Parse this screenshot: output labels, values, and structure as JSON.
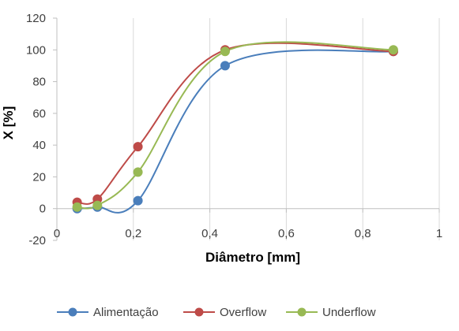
{
  "chart_data": {
    "type": "line",
    "smooth": true,
    "xlabel": "Diâmetro [mm]",
    "ylabel": "X [%]",
    "xlim": [
      0,
      1
    ],
    "ylim": [
      -20,
      120
    ],
    "x_ticks": [
      "0",
      "0,2",
      "0,4",
      "0,6",
      "0,8",
      "1"
    ],
    "x_tick_values": [
      0,
      0.2,
      0.4,
      0.6,
      0.8,
      1
    ],
    "y_ticks": [
      "-20",
      "0",
      "20",
      "40",
      "60",
      "80",
      "100",
      "120"
    ],
    "y_tick_values": [
      -20,
      0,
      20,
      40,
      60,
      80,
      100,
      120
    ],
    "grid": "vertical",
    "legend_position": "bottom",
    "series": [
      {
        "name": "Alimentação",
        "color": "#4a7ebb",
        "x": [
          0.053,
          0.106,
          0.212,
          0.44,
          0.88
        ],
        "y": [
          0,
          1,
          5,
          90,
          99
        ]
      },
      {
        "name": "Overflow",
        "color": "#be4b48",
        "x": [
          0.053,
          0.106,
          0.212,
          0.44,
          0.88
        ],
        "y": [
          4,
          6,
          39,
          100,
          99
        ]
      },
      {
        "name": "Underflow",
        "color": "#98b954",
        "x": [
          0.053,
          0.106,
          0.212,
          0.44,
          0.88
        ],
        "y": [
          1,
          2,
          23,
          99,
          100
        ]
      }
    ]
  }
}
